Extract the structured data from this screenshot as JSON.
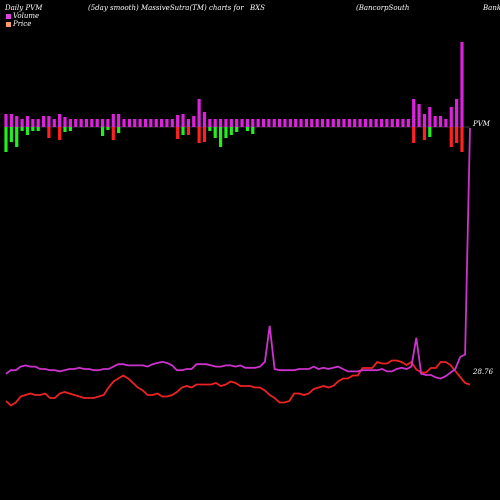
{
  "header": {
    "title_1": "Daily PVM",
    "title_2": "(5day smooth) MassiveSutra(TM) charts for",
    "symbol": "BXS",
    "company_1": "(BancorpSouth",
    "company_2": "Bank)"
  },
  "legend": {
    "items": [
      {
        "label": "Volume",
        "color": "#dd44dd"
      },
      {
        "label": "Price",
        "color": "#ff9966"
      }
    ]
  },
  "labels": {
    "pvm_marker": "PVM",
    "price_last": "28.76"
  },
  "colors": {
    "up_volume": "#dd22dd",
    "down_volume": "#ff2222",
    "sell_volume": "#22ee22",
    "pvm_line": "#cc33cc",
    "price_line": "#ee2222"
  },
  "chart_data": {
    "type": "line",
    "series": [
      {
        "name": "Volume",
        "values": [
          0.6,
          0.3,
          0.5,
          0.9,
          1.0,
          1.1,
          1.0,
          1.0,
          1.1,
          0.8,
          0.8,
          1.1,
          1.2,
          1.1,
          1.0,
          0.9,
          0.8,
          0.8,
          0.8,
          0.9,
          1.0,
          1.5,
          1.9,
          2.1,
          2.3,
          2.1,
          1.8,
          1.5,
          1.3,
          1.0,
          1.0,
          1.1,
          0.9,
          0.9,
          1.0,
          1.2,
          1.5,
          1.6,
          1.5,
          1.7,
          1.7,
          1.7,
          1.7,
          1.8,
          1.6,
          1.7,
          1.9,
          1.8,
          1.6,
          1.6,
          1.6,
          1.5,
          1.5,
          1.3,
          1.0,
          0.8,
          0.5,
          0.5,
          0.6,
          1.1,
          1.1,
          1.0,
          1.1,
          1.4,
          1.5,
          1.6,
          1.5,
          1.6,
          1.9,
          2.1,
          2.1,
          2.3,
          2.3,
          2.8,
          2.8,
          2.8,
          3.2,
          3.1,
          3.1,
          3.3,
          3.3,
          3.2,
          3.0,
          3.2,
          2.7,
          2.5,
          2.5,
          2.8,
          2.8,
          3.2,
          3.2,
          3.0,
          2.6,
          2.2,
          1.8,
          1.7
        ]
      },
      {
        "name": "Price",
        "values": [
          2.6,
          2.9,
          2.9,
          3.2,
          3.3,
          3.2,
          3.2,
          3.0,
          3.0,
          2.9,
          2.9,
          2.8,
          2.9,
          3.0,
          3.0,
          3.1,
          3.0,
          3.0,
          2.9,
          2.9,
          3.0,
          3.0,
          3.2,
          3.4,
          3.4,
          3.3,
          3.3,
          3.3,
          3.3,
          3.2,
          3.4,
          3.5,
          3.6,
          3.5,
          3.3,
          2.9,
          2.9,
          3.0,
          3.0,
          3.4,
          3.4,
          3.4,
          3.3,
          3.2,
          3.2,
          3.3,
          3.3,
          3.2,
          3.3,
          3.1,
          3.1,
          3.1,
          3.2,
          3.6,
          6.6,
          3.0,
          2.9,
          2.9,
          2.9,
          2.9,
          3.0,
          3.0,
          3.0,
          3.2,
          3.0,
          3.1,
          3.0,
          3.1,
          3.2,
          3.0,
          2.8,
          2.8,
          2.8,
          2.9,
          2.9,
          2.9,
          2.9,
          3.0,
          2.8,
          2.8,
          3.0,
          3.1,
          3.0,
          3.2,
          5.6,
          2.6,
          2.5,
          2.5,
          2.3,
          2.2,
          2.4,
          2.7,
          3.0,
          4.0,
          4.2,
          28.76
        ]
      }
    ],
    "volume_bars": [
      {
        "up": 2.6,
        "down": 0.0,
        "sell": 5.0
      },
      {
        "up": 2.6,
        "down": 0.0,
        "sell": 3.0
      },
      {
        "up": 2.2,
        "down": 0.0,
        "sell": 4.0
      },
      {
        "up": 1.6,
        "down": 0.0,
        "sell": 0.8
      },
      {
        "up": 2.2,
        "down": 0.0,
        "sell": 1.6
      },
      {
        "up": 1.6,
        "down": 0.0,
        "sell": 0.8
      },
      {
        "up": 1.6,
        "down": 0.0,
        "sell": 0.8
      },
      {
        "up": 2.2,
        "down": 0.0,
        "sell": 0.0
      },
      {
        "up": 2.2,
        "down": 2.2,
        "sell": 0.0
      },
      {
        "up": 1.6,
        "down": 0.0,
        "sell": 0.0
      },
      {
        "up": 2.6,
        "down": 2.6,
        "sell": 0.0
      },
      {
        "up": 2.0,
        "down": 0.0,
        "sell": 1.0
      },
      {
        "up": 1.6,
        "down": 0.0,
        "sell": 0.8
      },
      {
        "up": 1.6,
        "down": 0.0,
        "sell": 0.0
      },
      {
        "up": 1.6,
        "down": 0.0,
        "sell": 0.0
      },
      {
        "up": 1.6,
        "down": 0.0,
        "sell": 0.0
      },
      {
        "up": 1.6,
        "down": 0.0,
        "sell": 0.0
      },
      {
        "up": 1.6,
        "down": 0.0,
        "sell": 0.0
      },
      {
        "up": 1.6,
        "down": 0.0,
        "sell": 1.8
      },
      {
        "up": 1.6,
        "down": 0.0,
        "sell": 0.6
      },
      {
        "up": 2.6,
        "down": 2.6,
        "sell": 0.0
      },
      {
        "up": 2.6,
        "down": 0.0,
        "sell": 1.2
      },
      {
        "up": 1.6,
        "down": 0.0,
        "sell": 0.0
      },
      {
        "up": 1.6,
        "down": 0.0,
        "sell": 0.0
      },
      {
        "up": 1.6,
        "down": 0.0,
        "sell": 0.0
      },
      {
        "up": 1.6,
        "down": 0.0,
        "sell": 0.0
      },
      {
        "up": 1.6,
        "down": 0.0,
        "sell": 0.0
      },
      {
        "up": 1.6,
        "down": 0.0,
        "sell": 0.0
      },
      {
        "up": 1.6,
        "down": 0.0,
        "sell": 0.0
      },
      {
        "up": 1.6,
        "down": 0.0,
        "sell": 0.0
      },
      {
        "up": 1.6,
        "down": 0.0,
        "sell": 0.0
      },
      {
        "up": 1.6,
        "down": 0.0,
        "sell": 0.0
      },
      {
        "up": 2.4,
        "down": 2.4,
        "sell": 0.0
      },
      {
        "up": 2.6,
        "down": 0.0,
        "sell": 1.6
      },
      {
        "up": 1.6,
        "down": 1.6,
        "sell": 0.0
      },
      {
        "up": 2.2,
        "down": 0.0,
        "sell": 0.0
      },
      {
        "up": 5.6,
        "down": 3.2,
        "sell": 0.0
      },
      {
        "up": 3.0,
        "down": 3.0,
        "sell": 0.0
      },
      {
        "up": 1.6,
        "down": 0.0,
        "sell": 0.8
      },
      {
        "up": 1.6,
        "down": 0.0,
        "sell": 2.2
      },
      {
        "up": 1.6,
        "down": 0.0,
        "sell": 4.0
      },
      {
        "up": 1.6,
        "down": 0.0,
        "sell": 2.2
      },
      {
        "up": 1.6,
        "down": 0.0,
        "sell": 1.6
      },
      {
        "up": 1.6,
        "down": 0.0,
        "sell": 1.0
      },
      {
        "up": 1.6,
        "down": 0.0,
        "sell": 0.0
      },
      {
        "up": 1.6,
        "down": 0.0,
        "sell": 0.8
      },
      {
        "up": 1.6,
        "down": 0.0,
        "sell": 1.4
      },
      {
        "up": 1.6,
        "down": 0.0,
        "sell": 0.0
      },
      {
        "up": 1.6,
        "down": 0.0,
        "sell": 0.0
      },
      {
        "up": 1.6,
        "down": 0.0,
        "sell": 0.0
      },
      {
        "up": 1.6,
        "down": 0.0,
        "sell": 0.0
      },
      {
        "up": 1.6,
        "down": 0.0,
        "sell": 0.0
      },
      {
        "up": 1.6,
        "down": 0.0,
        "sell": 0.0
      },
      {
        "up": 1.6,
        "down": 0.0,
        "sell": 0.0
      },
      {
        "up": 1.6,
        "down": 0.0,
        "sell": 0.0
      },
      {
        "up": 1.6,
        "down": 0.0,
        "sell": 0.0
      },
      {
        "up": 1.6,
        "down": 0.0,
        "sell": 0.0
      },
      {
        "up": 1.6,
        "down": 0.0,
        "sell": 0.0
      },
      {
        "up": 1.6,
        "down": 0.0,
        "sell": 0.0
      },
      {
        "up": 1.6,
        "down": 0.0,
        "sell": 0.0
      },
      {
        "up": 1.6,
        "down": 0.0,
        "sell": 0.0
      },
      {
        "up": 1.6,
        "down": 0.0,
        "sell": 0.0
      },
      {
        "up": 1.6,
        "down": 0.0,
        "sell": 0.0
      },
      {
        "up": 1.6,
        "down": 0.0,
        "sell": 0.0
      },
      {
        "up": 1.6,
        "down": 0.0,
        "sell": 0.0
      },
      {
        "up": 1.6,
        "down": 0.0,
        "sell": 0.0
      },
      {
        "up": 1.6,
        "down": 0.0,
        "sell": 0.0
      },
      {
        "up": 1.6,
        "down": 0.0,
        "sell": 0.0
      },
      {
        "up": 1.6,
        "down": 0.0,
        "sell": 0.0
      },
      {
        "up": 1.6,
        "down": 0.0,
        "sell": 0.0
      },
      {
        "up": 1.6,
        "down": 0.0,
        "sell": 0.0
      },
      {
        "up": 1.6,
        "down": 0.0,
        "sell": 0.0
      },
      {
        "up": 1.6,
        "down": 0.0,
        "sell": 0.0
      },
      {
        "up": 1.6,
        "down": 0.0,
        "sell": 0.0
      },
      {
        "up": 1.6,
        "down": 0.0,
        "sell": 0.0
      },
      {
        "up": 1.6,
        "down": 0.0,
        "sell": 0.0
      },
      {
        "up": 5.6,
        "down": 3.2,
        "sell": 0.0
      },
      {
        "up": 4.6,
        "down": 0.0,
        "sell": 0.0
      },
      {
        "up": 2.6,
        "down": 2.6,
        "sell": 0.0
      },
      {
        "up": 4.0,
        "down": 0.0,
        "sell": 2.0
      },
      {
        "up": 2.2,
        "down": 0.0,
        "sell": 0.0
      },
      {
        "up": 2.2,
        "down": 0.0,
        "sell": 0.0
      },
      {
        "up": 1.6,
        "down": 0.0,
        "sell": 0.0
      },
      {
        "up": 4.0,
        "down": 4.0,
        "sell": 0.0
      },
      {
        "up": 5.6,
        "down": 3.2,
        "sell": 0.0
      },
      {
        "up": 17.0,
        "down": 5.0,
        "sell": 0.0
      }
    ]
  }
}
